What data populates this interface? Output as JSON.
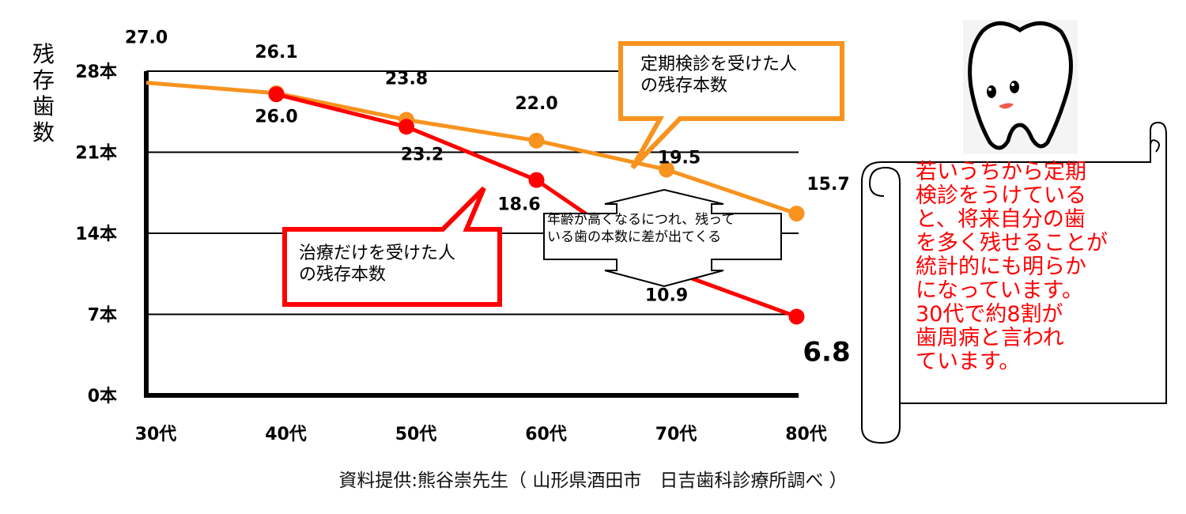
{
  "chart_data": {
    "type": "line",
    "title": "",
    "ylabel": "残存歯数",
    "xlabel": "",
    "categories": [
      "30代",
      "40代",
      "50代",
      "60代",
      "70代",
      "80代"
    ],
    "ylim": [
      0,
      28
    ],
    "yticks": [
      {
        "value": 0,
        "label": "0本"
      },
      {
        "value": 7,
        "label": "7本"
      },
      {
        "value": 14,
        "label": "14本"
      },
      {
        "value": 21,
        "label": "21本"
      },
      {
        "value": 28,
        "label": "28本"
      }
    ],
    "grid": true,
    "series": [
      {
        "name": "定期検診を受けた人の残存本数",
        "color": "#f7931e",
        "values": [
          null,
          26.1,
          23.8,
          22.0,
          19.5,
          15.7
        ],
        "line_start_value": 27.0,
        "labels": [
          "27.0",
          "26.1",
          "23.8",
          "22.0",
          "19.5",
          "15.7"
        ]
      },
      {
        "name": "治療だけを受けた人の残存本数",
        "color": "#ff0000",
        "values": [
          null,
          26.0,
          23.2,
          18.6,
          10.9,
          6.8
        ],
        "labels": [
          null,
          "26.0",
          "23.2",
          "18.6",
          "10.9",
          "6.8"
        ]
      }
    ],
    "annotations": {
      "checkup_callout": "定期検診を受けた人\nの残存本数",
      "treatment_callout": "治療だけを受けた人\nの残存本数",
      "gap_note": "年齢が高くなるにつれ、残って\nいる歯の本数に差が出てくる"
    }
  },
  "note": "若いうちから定期\n検診をうけている\nと、将来自分の歯\nを多く残せることが\n統計的にも明らか\nになっています。\n30代で約8割が\n歯周病と言われ\nています。",
  "source": "資料提供:熊谷崇先生（ 山形県酒田市　日吉歯科診療所調べ ）",
  "colors": {
    "checkup": "#f7931e",
    "treatment": "#ff0000",
    "note_text": "#ff0000"
  },
  "mascot_icon": "tooth-mascot-icon"
}
